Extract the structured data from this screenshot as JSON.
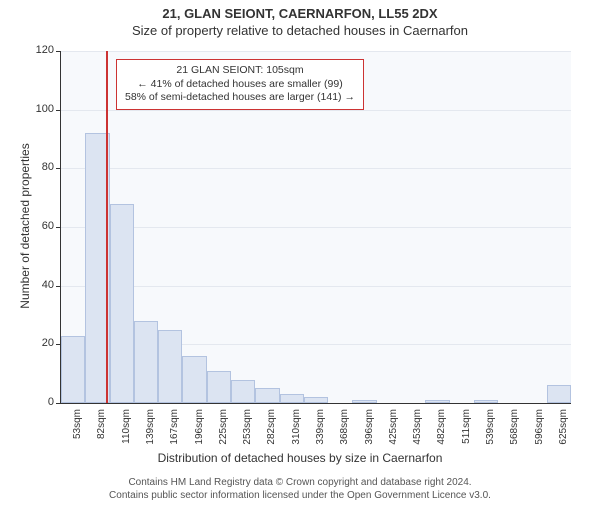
{
  "title_line1": "21, GLAN SEIONT, CAERNARFON, LL55 2DX",
  "title_line2": "Size of property relative to detached houses in Caernarfon",
  "chart": {
    "type": "histogram",
    "y_label": "Number of detached properties",
    "x_label": "Distribution of detached houses by size in Caernarfon",
    "y_ticks": [
      0,
      20,
      40,
      60,
      80,
      100,
      120
    ],
    "y_max": 120,
    "x_categories": [
      "53sqm",
      "82sqm",
      "110sqm",
      "139sqm",
      "167sqm",
      "196sqm",
      "225sqm",
      "253sqm",
      "282sqm",
      "310sqm",
      "339sqm",
      "368sqm",
      "396sqm",
      "425sqm",
      "453sqm",
      "482sqm",
      "511sqm",
      "539sqm",
      "568sqm",
      "596sqm",
      "625sqm"
    ],
    "bar_values": [
      23,
      92,
      68,
      28,
      25,
      16,
      11,
      8,
      5,
      3,
      2,
      0,
      1,
      0,
      0,
      1,
      0,
      1,
      0,
      0,
      6
    ],
    "bar_fill": "#dce4f2",
    "bar_stroke": "#b3c3e0",
    "panel_bg": "#f7f9fc",
    "grid_color": "#e4e8ef",
    "axis_color": "#333333",
    "marker": {
      "value_sqm": 105,
      "x_min_sqm": 53,
      "x_max_sqm": 625,
      "color": "#cc3333"
    },
    "annotation": {
      "line1": "21 GLAN SEIONT: 105sqm",
      "line2": "← 41% of detached houses are smaller (99)",
      "line3": "58% of semi-detached houses are larger (141) →",
      "border_color": "#cc3333"
    }
  },
  "footer_line1": "Contains HM Land Registry data © Crown copyright and database right 2024.",
  "footer_line2": "Contains public sector information licensed under the Open Government Licence v3.0."
}
